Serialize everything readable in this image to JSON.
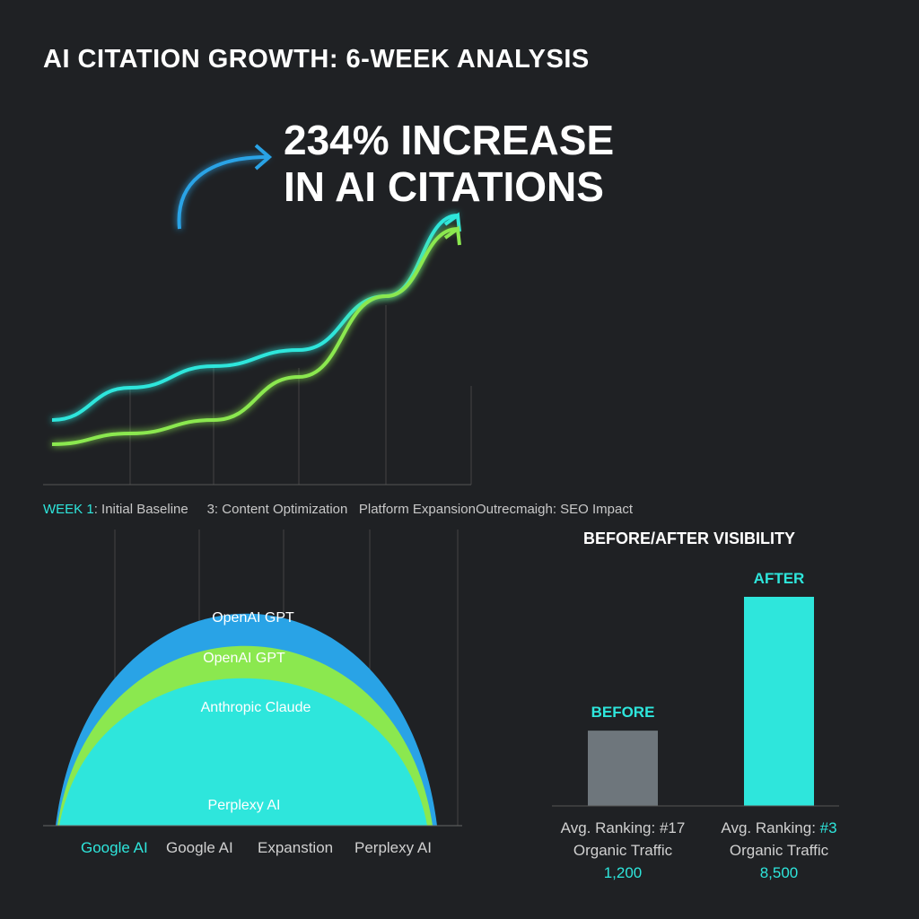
{
  "title": "AI CITATION GROWTH: 6-WEEK ANALYSIS",
  "headline": {
    "line1": "234% INCREASE",
    "line2": "IN AI CITATIONS"
  },
  "colors": {
    "cyan": "#2ee6dc",
    "green": "#8be84f",
    "blue": "#29a3e6",
    "gray": "#6e767c",
    "background": "#1f2124"
  },
  "chart_data": [
    {
      "type": "line",
      "title": "",
      "x": [
        1,
        2,
        3,
        4,
        5,
        6
      ],
      "x_tick_labels": {
        "week_prefix": "WEEK 1",
        "w1": ": Initial Baseline",
        "w3": "3: Content Optimization",
        "w4": "Platform Expansion",
        "w5": "Outrecmaigh",
        "w6": ": SEO Impact"
      },
      "ylim": [
        0,
        100
      ],
      "grid": "vertical",
      "series": [
        {
          "color": "#2ee6dc",
          "values": [
            24,
            36,
            44,
            50,
            70,
            100
          ]
        },
        {
          "color": "#8be84f",
          "values": [
            15,
            19,
            24,
            40,
            70,
            95
          ]
        }
      ]
    },
    {
      "type": "area",
      "title": "",
      "layers": [
        {
          "label": "OpenAI GPT",
          "color": "#29a3e6",
          "peak": 85
        },
        {
          "label": "OpenAI GPT",
          "color": "#8be84f",
          "peak": 69
        },
        {
          "label": "Anthropic Claude",
          "color": "#2ee6dc",
          "peak": 53
        },
        {
          "label": "Perplexy AI",
          "color": "#2ee6dc",
          "peak": null
        }
      ],
      "categories": [
        "Google AI",
        "Google AI",
        "Expanstion",
        "Perplexy AI"
      ]
    },
    {
      "type": "bar",
      "title": "BEFORE/AFTER VISIBILITY",
      "categories": [
        "BEFORE",
        "AFTER"
      ],
      "values_relative": [
        0.36,
        1
      ],
      "colors": [
        "#6e767c",
        "#2ee6dc"
      ],
      "stats": [
        {
          "ranking_label": "Avg. Ranking: ",
          "ranking": "#17",
          "traffic_label": "Organic Traffic",
          "traffic": "1,200"
        },
        {
          "ranking_label": "Avg. Ranking: ",
          "ranking": "#3",
          "traffic_label": "Organic Traffic",
          "traffic": "8,500"
        }
      ]
    }
  ]
}
